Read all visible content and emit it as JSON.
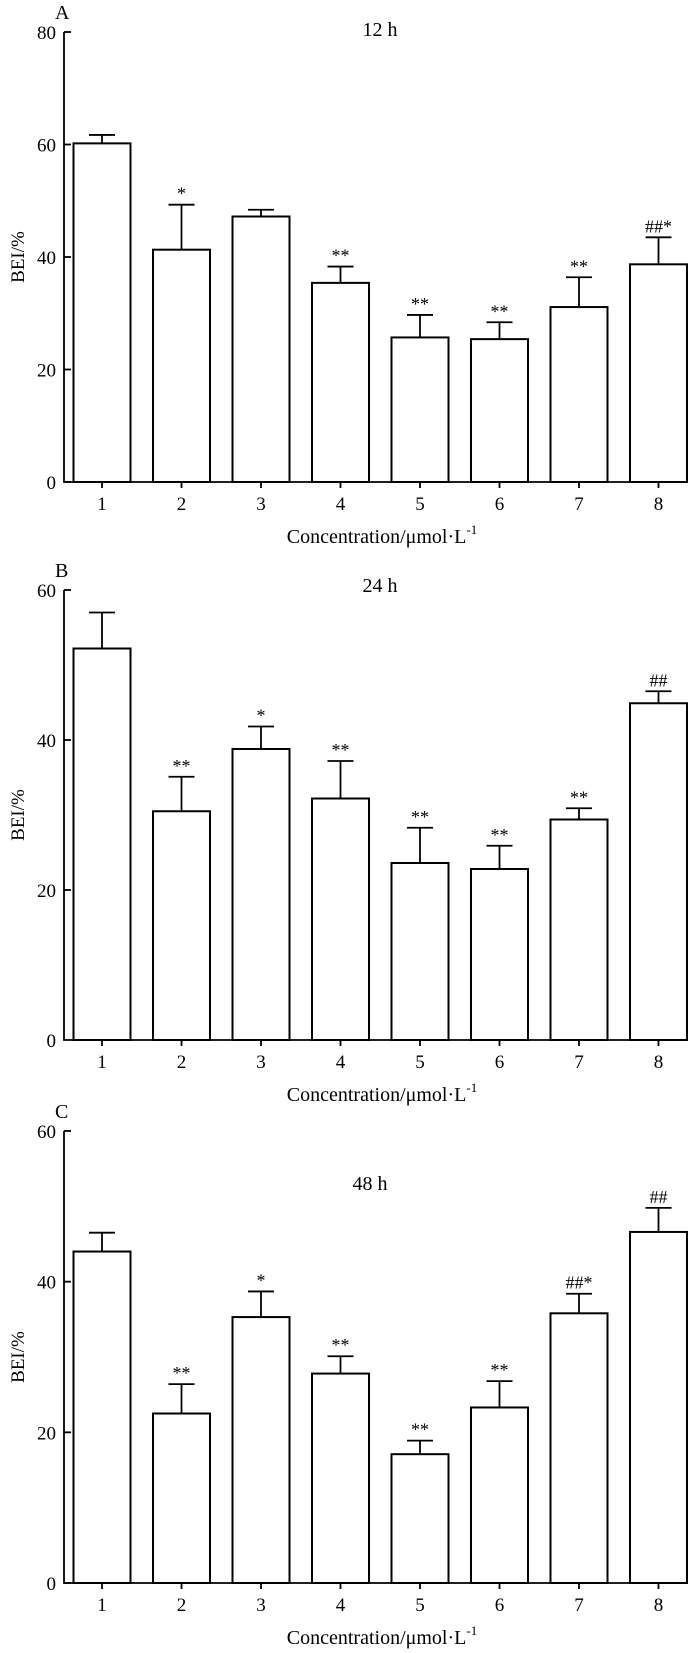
{
  "chart_data": [
    {
      "type": "bar",
      "panel": "A",
      "title": "12 h",
      "xlabel": "Concentration/μmol·L",
      "xlabel_sup": "-1",
      "ylabel": "BEI/%",
      "ylim": [
        0,
        80
      ],
      "yticks": [
        0,
        20,
        40,
        60,
        80
      ],
      "categories": [
        "1",
        "2",
        "3",
        "4",
        "5",
        "6",
        "7",
        "8"
      ],
      "values": [
        60.2,
        41.3,
        47.2,
        35.4,
        25.7,
        25.4,
        31.1,
        38.7
      ],
      "errors": [
        1.5,
        8.0,
        1.2,
        2.9,
        4.0,
        3.0,
        5.3,
        4.8
      ],
      "significance": [
        "",
        "*",
        "",
        "**",
        "**",
        "**",
        "**",
        "##*"
      ]
    },
    {
      "type": "bar",
      "panel": "B",
      "title": "24 h",
      "xlabel": "Concentration/μmol·L",
      "xlabel_sup": "-1",
      "ylabel": "BEI/%",
      "ylim": [
        0,
        60
      ],
      "yticks": [
        20,
        40,
        60
      ],
      "zero_label": "0",
      "categories": [
        "1",
        "2",
        "3",
        "4",
        "5",
        "6",
        "7",
        "8"
      ],
      "values": [
        52.2,
        30.5,
        38.8,
        32.2,
        23.6,
        22.8,
        29.4,
        44.9
      ],
      "errors": [
        4.8,
        4.6,
        3.0,
        5.0,
        4.7,
        3.1,
        1.5,
        1.6
      ],
      "significance": [
        "",
        "**",
        "*",
        "**",
        "**",
        "**",
        "**",
        "##"
      ]
    },
    {
      "type": "bar",
      "panel": "C",
      "title": "48 h",
      "xlabel": "Concentration/μmol·L",
      "xlabel_sup": "-1",
      "ylabel": "BEI/%",
      "ylim": [
        0,
        60
      ],
      "yticks": [
        0,
        20,
        40,
        60
      ],
      "categories": [
        "1",
        "2",
        "3",
        "4",
        "5",
        "6",
        "7",
        "8"
      ],
      "values": [
        44.0,
        22.5,
        35.3,
        27.8,
        17.1,
        23.3,
        35.8,
        46.6
      ],
      "errors": [
        2.5,
        3.9,
        3.4,
        2.3,
        1.8,
        3.5,
        2.6,
        3.2
      ],
      "significance": [
        "",
        "**",
        "*",
        "**",
        "**",
        "**",
        "##*",
        "##"
      ]
    }
  ]
}
